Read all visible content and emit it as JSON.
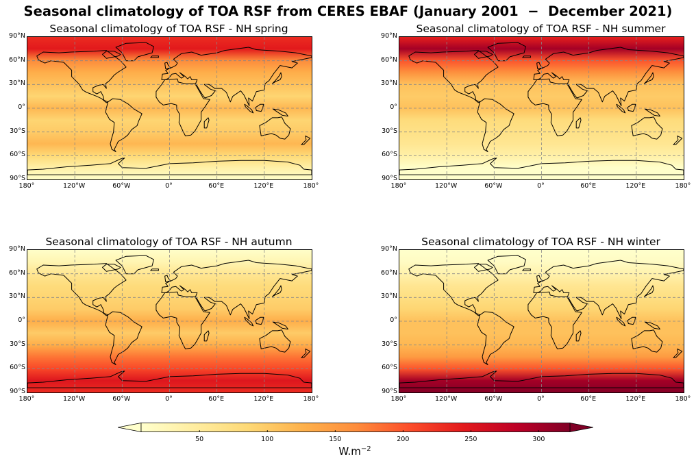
{
  "figure": {
    "title": "Seasonal climatology of TOA RSF from CERES EBAF (January 2001  −  December 2021)"
  },
  "panels": [
    {
      "id": "spring",
      "title": "Seasonal climatology of TOA RSF - NH spring"
    },
    {
      "id": "summer",
      "title": "Seasonal climatology of TOA RSF - NH summer"
    },
    {
      "id": "autumn",
      "title": "Seasonal climatology of TOA RSF - NH autumn"
    },
    {
      "id": "winter",
      "title": "Seasonal climatology of TOA RSF - NH winter"
    }
  ],
  "axes": {
    "lat_ticks": [
      "90°N",
      "60°N",
      "30°N",
      "0°",
      "30°S",
      "60°S",
      "90°S"
    ],
    "lon_ticks": [
      "180°",
      "120°W",
      "60°W",
      "0°",
      "60°E",
      "120°E",
      "180°"
    ]
  },
  "colorbar": {
    "ticks": [
      "50",
      "100",
      "150",
      "200",
      "250",
      "300"
    ],
    "tick_values": [
      50,
      100,
      150,
      200,
      250,
      300
    ],
    "range": [
      7,
      323
    ],
    "label_base": "W.m",
    "label_exp": "−2",
    "colormap": [
      "#ffffcc",
      "#ffeda0",
      "#fed976",
      "#feb24c",
      "#fd8d3c",
      "#fc4e2a",
      "#e31a1c",
      "#bd0026",
      "#800026"
    ]
  },
  "chart_data": [
    {
      "type": "heatmap",
      "title": "Seasonal climatology of TOA RSF - NH spring",
      "x_range": [
        -180,
        180
      ],
      "y_range": [
        -90,
        90
      ],
      "zonal_mean": {
        "lat": [
          90,
          75,
          60,
          45,
          30,
          15,
          0,
          -15,
          -30,
          -45,
          -60,
          -75,
          -90
        ],
        "value": [
          230,
          245,
          165,
          130,
          110,
          90,
          120,
          90,
          100,
          120,
          85,
          40,
          10
        ]
      }
    },
    {
      "type": "heatmap",
      "title": "Seasonal climatology of TOA RSF - NH summer",
      "x_range": [
        -180,
        180
      ],
      "y_range": [
        -90,
        90
      ],
      "zonal_mean": {
        "lat": [
          90,
          75,
          60,
          45,
          30,
          15,
          0,
          -15,
          -30,
          -45,
          -60,
          -75,
          -90
        ],
        "value": [
          240,
          300,
          200,
          160,
          110,
          100,
          110,
          80,
          70,
          60,
          40,
          10,
          5
        ]
      }
    },
    {
      "type": "heatmap",
      "title": "Seasonal climatology of TOA RSF - NH autumn",
      "x_range": [
        -180,
        180
      ],
      "y_range": [
        -90,
        90
      ],
      "zonal_mean": {
        "lat": [
          90,
          75,
          60,
          45,
          30,
          15,
          0,
          -15,
          -30,
          -45,
          -60,
          -75,
          -90
        ],
        "value": [
          10,
          30,
          60,
          80,
          90,
          100,
          130,
          100,
          130,
          180,
          210,
          250,
          230
        ]
      }
    },
    {
      "type": "heatmap",
      "title": "Seasonal climatology of TOA RSF - NH winter",
      "x_range": [
        -180,
        180
      ],
      "y_range": [
        -90,
        90
      ],
      "zonal_mean": {
        "lat": [
          90,
          75,
          60,
          45,
          30,
          15,
          0,
          -15,
          -30,
          -45,
          -60,
          -75,
          -90
        ],
        "value": [
          5,
          15,
          35,
          60,
          75,
          90,
          110,
          110,
          120,
          150,
          200,
          300,
          320
        ]
      }
    }
  ]
}
